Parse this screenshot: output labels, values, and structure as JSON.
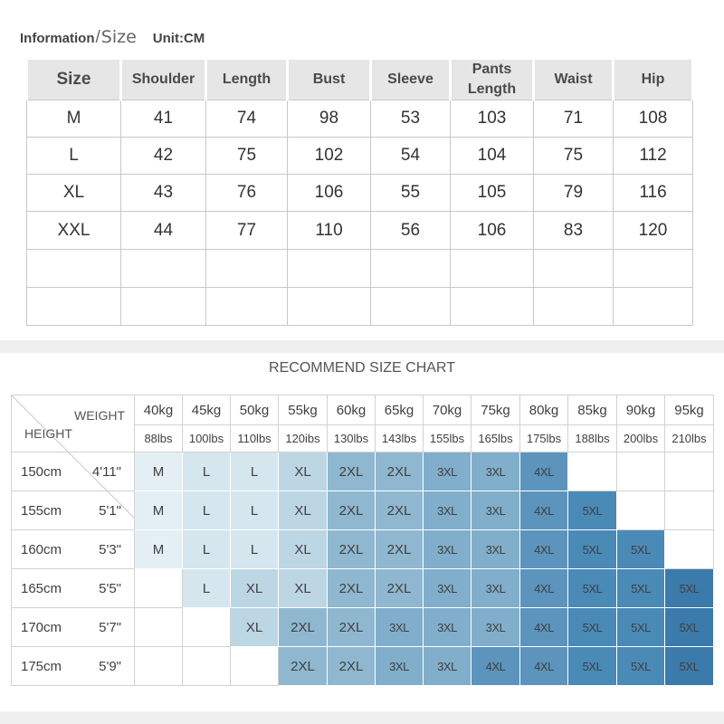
{
  "header": {
    "information": "Information",
    "slash": "/",
    "size": "Size",
    "unit": "Unit:CM"
  },
  "size_table": {
    "columns": [
      "Size",
      "Shoulder",
      "Length",
      "Bust",
      "Sleeve",
      "Pants Length",
      "Waist",
      "Hip"
    ],
    "rows": [
      [
        "M",
        "41",
        "74",
        "98",
        "53",
        "103",
        "71",
        "108"
      ],
      [
        "L",
        "42",
        "75",
        "102",
        "54",
        "104",
        "75",
        "112"
      ],
      [
        "XL",
        "43",
        "76",
        "106",
        "55",
        "105",
        "79",
        "116"
      ],
      [
        "XXL",
        "44",
        "77",
        "110",
        "56",
        "106",
        "83",
        "120"
      ],
      [
        "",
        "",
        "",
        "",
        "",
        "",
        "",
        ""
      ],
      [
        "",
        "",
        "",
        "",
        "",
        "",
        "",
        ""
      ]
    ]
  },
  "recommend": {
    "title": "RECOMMEND SIZE CHART",
    "weight_label": "WEIGHT",
    "height_label": "HEIGHT",
    "weights_kg": [
      "40kg",
      "45kg",
      "50kg",
      "55kg",
      "60kg",
      "65kg",
      "70kg",
      "75kg",
      "80kg",
      "85kg",
      "90kg",
      "95kg"
    ],
    "weights_lbs": [
      "88lbs",
      "100lbs",
      "110lbs",
      "120ibs",
      "130lbs",
      "143lbs",
      "155lbs",
      "165lbs",
      "175lbs",
      "188lbs",
      "200lbs",
      "210lbs"
    ],
    "rows": [
      {
        "cm": "150cm",
        "ft": "4'11\"",
        "sizes": [
          "M",
          "L",
          "L",
          "XL",
          "2XL",
          "2XL",
          "3XL",
          "3XL",
          "4XL",
          "",
          "",
          ""
        ]
      },
      {
        "cm": "155cm",
        "ft": "5'1\"",
        "sizes": [
          "M",
          "L",
          "L",
          "XL",
          "2XL",
          "2XL",
          "3XL",
          "3XL",
          "4XL",
          "5XL",
          "",
          ""
        ]
      },
      {
        "cm": "160cm",
        "ft": "5'3\"",
        "sizes": [
          "M",
          "L",
          "L",
          "XL",
          "2XL",
          "2XL",
          "3XL",
          "3XL",
          "4XL",
          "5XL",
          "5XL",
          ""
        ]
      },
      {
        "cm": "165cm",
        "ft": "5'5\"",
        "sizes": [
          "",
          "L",
          "XL",
          "XL",
          "2XL",
          "2XL",
          "3XL",
          "3XL",
          "4XL",
          "5XL",
          "5XL",
          "5XL"
        ]
      },
      {
        "cm": "170cm",
        "ft": "5'7\"",
        "sizes": [
          "",
          "",
          "XL",
          "2XL",
          "2XL",
          "3XL",
          "3XL",
          "3XL",
          "4XL",
          "5XL",
          "5XL",
          "5XL"
        ]
      },
      {
        "cm": "175cm",
        "ft": "5'9\"",
        "sizes": [
          "",
          "",
          "",
          "2XL",
          "2XL",
          "3XL",
          "3XL",
          "4XL",
          "4XL",
          "5XL",
          "5XL",
          "5XL"
        ]
      }
    ],
    "size_colors": {
      "M": "#e4eff5",
      "L": "#d6e6ef",
      "XL": "#bdd6e4",
      "2XL": "#8fb8d0",
      "3XL": "#80aecb",
      "4XL": "#5c94bd",
      "5XL": "#4a8ab7"
    },
    "last_col_5xl_color": "#3b7bab"
  }
}
